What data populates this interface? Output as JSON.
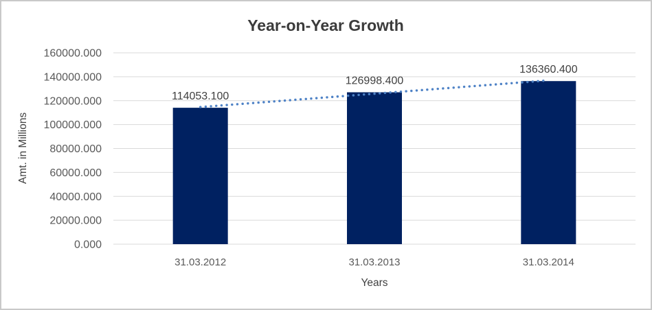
{
  "chart_data": {
    "type": "bar",
    "title": "Year-on-Year Growth",
    "xlabel": "Years",
    "ylabel": "Amt. in Millions",
    "categories": [
      "31.03.2012",
      "31.03.2013",
      "31.03.2014"
    ],
    "values": [
      114053.1,
      126998.4,
      136360.4
    ],
    "data_labels": [
      "114053.100",
      "126998.400",
      "136360.400"
    ],
    "ylim": [
      0,
      160000
    ],
    "ytick_step": 20000,
    "ytick_labels": [
      "0.000",
      "20000.000",
      "40000.000",
      "60000.000",
      "80000.000",
      "100000.000",
      "120000.000",
      "140000.000",
      "160000.000"
    ],
    "grid": true,
    "legend": "none",
    "trendline": {
      "type": "linear",
      "style": "dotted",
      "color": "#4e82c6"
    },
    "colors": {
      "bar": "#002161",
      "gridline": "#d9d9d9",
      "axis_line": "#d9d9d9",
      "title": "#3b3b3b",
      "tick_label": "#595959",
      "axis_title": "#404040",
      "data_label": "#3f3f3f",
      "frame_border": "#c9c9c9",
      "background": "#ffffff"
    }
  }
}
